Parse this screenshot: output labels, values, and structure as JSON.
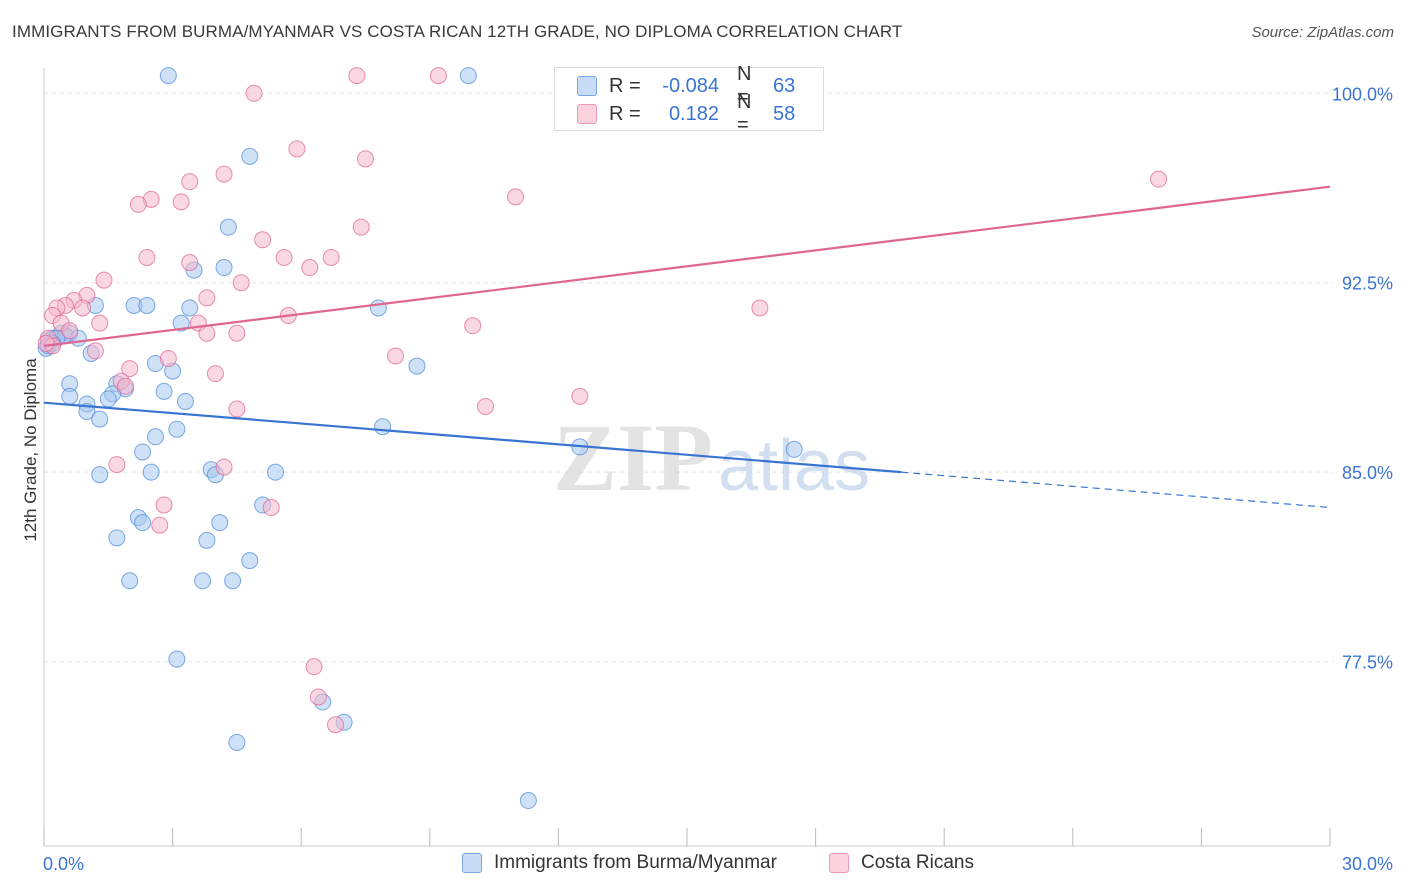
{
  "title": "IMMIGRANTS FROM BURMA/MYANMAR VS COSTA RICAN 12TH GRADE, NO DIPLOMA CORRELATION CHART",
  "source": "Source: ZipAtlas.com",
  "watermark": {
    "zip": "ZIP",
    "atlas": "atlas"
  },
  "legend": {
    "rows": [
      {
        "label": "R =",
        "r": "-0.084",
        "n_label": "N =",
        "n": "63",
        "color": "#a8c8f0"
      },
      {
        "label": "R =",
        "r": "0.182",
        "n_label": "N =",
        "n": "58",
        "color": "#f5b8cc"
      }
    ]
  },
  "bottom_legend": [
    {
      "label": "Immigrants from Burma/Myanmar",
      "color": "#a8c8f0"
    },
    {
      "label": "Costa Ricans",
      "color": "#f5b8cc"
    }
  ],
  "chart_data": {
    "type": "scatter",
    "title": "IMMIGRANTS FROM BURMA/MYANMAR VS COSTA RICAN 12TH GRADE, NO DIPLOMA CORRELATION CHART",
    "xlabel": "",
    "ylabel": "12th Grade, No Diploma",
    "xlim": [
      0,
      30
    ],
    "ylim": [
      70.2,
      101.0
    ],
    "x_tick_labels": [
      "0.0%",
      "30.0%"
    ],
    "y_ticks": [
      77.5,
      85.0,
      92.5,
      100.0
    ],
    "y_tick_labels": [
      "77.5%",
      "85.0%",
      "92.5%",
      "100.0%"
    ],
    "grid": true,
    "series": [
      {
        "name": "Immigrants from Burma/Myanmar",
        "color": "#4a86d8",
        "fill": "#a8c8f0",
        "points": [
          [
            2.9,
            100.7
          ],
          [
            9.9,
            100.7
          ],
          [
            4.8,
            97.5
          ],
          [
            4.3,
            94.7
          ],
          [
            3.5,
            93.0
          ],
          [
            4.2,
            93.1
          ],
          [
            1.2,
            91.6
          ],
          [
            2.1,
            91.6
          ],
          [
            2.4,
            91.6
          ],
          [
            3.4,
            91.5
          ],
          [
            7.8,
            91.5
          ],
          [
            3.2,
            90.9
          ],
          [
            0.4,
            90.5
          ],
          [
            0.6,
            90.5
          ],
          [
            0.2,
            90.3
          ],
          [
            0.5,
            90.4
          ],
          [
            0.8,
            90.3
          ],
          [
            0.1,
            90.2
          ],
          [
            1.1,
            89.7
          ],
          [
            2.6,
            89.3
          ],
          [
            3.0,
            89.0
          ],
          [
            8.7,
            89.2
          ],
          [
            0.6,
            88.5
          ],
          [
            1.7,
            88.5
          ],
          [
            1.9,
            88.3
          ],
          [
            1.6,
            88.1
          ],
          [
            2.8,
            88.2
          ],
          [
            0.6,
            88.0
          ],
          [
            1.5,
            87.9
          ],
          [
            1.0,
            87.7
          ],
          [
            3.3,
            87.8
          ],
          [
            1.0,
            87.4
          ],
          [
            1.3,
            87.1
          ],
          [
            7.9,
            86.8
          ],
          [
            3.1,
            86.7
          ],
          [
            2.6,
            86.4
          ],
          [
            12.5,
            86.0
          ],
          [
            17.5,
            85.9
          ],
          [
            2.3,
            85.8
          ],
          [
            2.5,
            85.0
          ],
          [
            3.9,
            85.1
          ],
          [
            4.0,
            84.9
          ],
          [
            5.4,
            85.0
          ],
          [
            1.3,
            84.9
          ],
          [
            5.1,
            83.7
          ],
          [
            2.2,
            83.2
          ],
          [
            2.3,
            83.0
          ],
          [
            4.1,
            83.0
          ],
          [
            1.7,
            82.4
          ],
          [
            3.8,
            82.3
          ],
          [
            4.8,
            81.5
          ],
          [
            2.0,
            80.7
          ],
          [
            3.7,
            80.7
          ],
          [
            4.4,
            80.7
          ],
          [
            3.1,
            77.6
          ],
          [
            6.5,
            75.9
          ],
          [
            7.0,
            75.1
          ],
          [
            4.5,
            74.3
          ],
          [
            11.3,
            72.0
          ],
          [
            0.05,
            89.9
          ],
          [
            0.1,
            90.0
          ],
          [
            0.3,
            90.3
          ],
          [
            0.2,
            90.1
          ]
        ]
      },
      {
        "name": "Costa Ricans",
        "color": "#e06090",
        "fill": "#f5b8cc",
        "points": [
          [
            7.3,
            100.7
          ],
          [
            9.2,
            100.7
          ],
          [
            4.9,
            100.0
          ],
          [
            5.9,
            97.8
          ],
          [
            7.5,
            97.4
          ],
          [
            4.2,
            96.8
          ],
          [
            3.4,
            96.5
          ],
          [
            11.0,
            95.9
          ],
          [
            2.5,
            95.8
          ],
          [
            3.2,
            95.7
          ],
          [
            2.2,
            95.6
          ],
          [
            7.4,
            94.7
          ],
          [
            5.1,
            94.2
          ],
          [
            5.6,
            93.5
          ],
          [
            2.4,
            93.5
          ],
          [
            6.7,
            93.5
          ],
          [
            3.4,
            93.3
          ],
          [
            6.2,
            93.1
          ],
          [
            1.4,
            92.6
          ],
          [
            4.6,
            92.5
          ],
          [
            1.0,
            92.0
          ],
          [
            3.8,
            91.9
          ],
          [
            0.7,
            91.8
          ],
          [
            0.5,
            91.6
          ],
          [
            0.9,
            91.5
          ],
          [
            0.3,
            91.5
          ],
          [
            0.2,
            91.2
          ],
          [
            16.7,
            91.5
          ],
          [
            5.7,
            91.2
          ],
          [
            0.4,
            90.9
          ],
          [
            1.3,
            90.9
          ],
          [
            10.0,
            90.8
          ],
          [
            3.6,
            90.9
          ],
          [
            3.8,
            90.5
          ],
          [
            4.5,
            90.5
          ],
          [
            0.6,
            90.6
          ],
          [
            0.1,
            90.3
          ],
          [
            0.2,
            90.0
          ],
          [
            1.2,
            89.8
          ],
          [
            2.9,
            89.5
          ],
          [
            8.2,
            89.6
          ],
          [
            2.0,
            89.1
          ],
          [
            4.0,
            88.9
          ],
          [
            1.8,
            88.6
          ],
          [
            1.9,
            88.4
          ],
          [
            12.5,
            88.0
          ],
          [
            10.3,
            87.6
          ],
          [
            4.5,
            87.5
          ],
          [
            26.0,
            96.6
          ],
          [
            1.7,
            85.3
          ],
          [
            4.2,
            85.2
          ],
          [
            2.8,
            83.7
          ],
          [
            5.3,
            83.6
          ],
          [
            2.7,
            82.9
          ],
          [
            6.3,
            77.3
          ],
          [
            6.4,
            76.1
          ],
          [
            6.8,
            75.0
          ],
          [
            0.05,
            90.1
          ]
        ]
      }
    ],
    "trend_lines": [
      {
        "series": "Immigrants from Burma/Myanmar",
        "x_start": 0.0,
        "y_start": 87.75,
        "x_solid_end": 20.0,
        "y_solid_end": 85.0,
        "x_end": 30.0,
        "y_end": 83.6
      },
      {
        "series": "Costa Ricans",
        "x_start": 0.0,
        "y_start": 90.0,
        "x_end": 30.0,
        "y_end": 96.3
      }
    ]
  }
}
